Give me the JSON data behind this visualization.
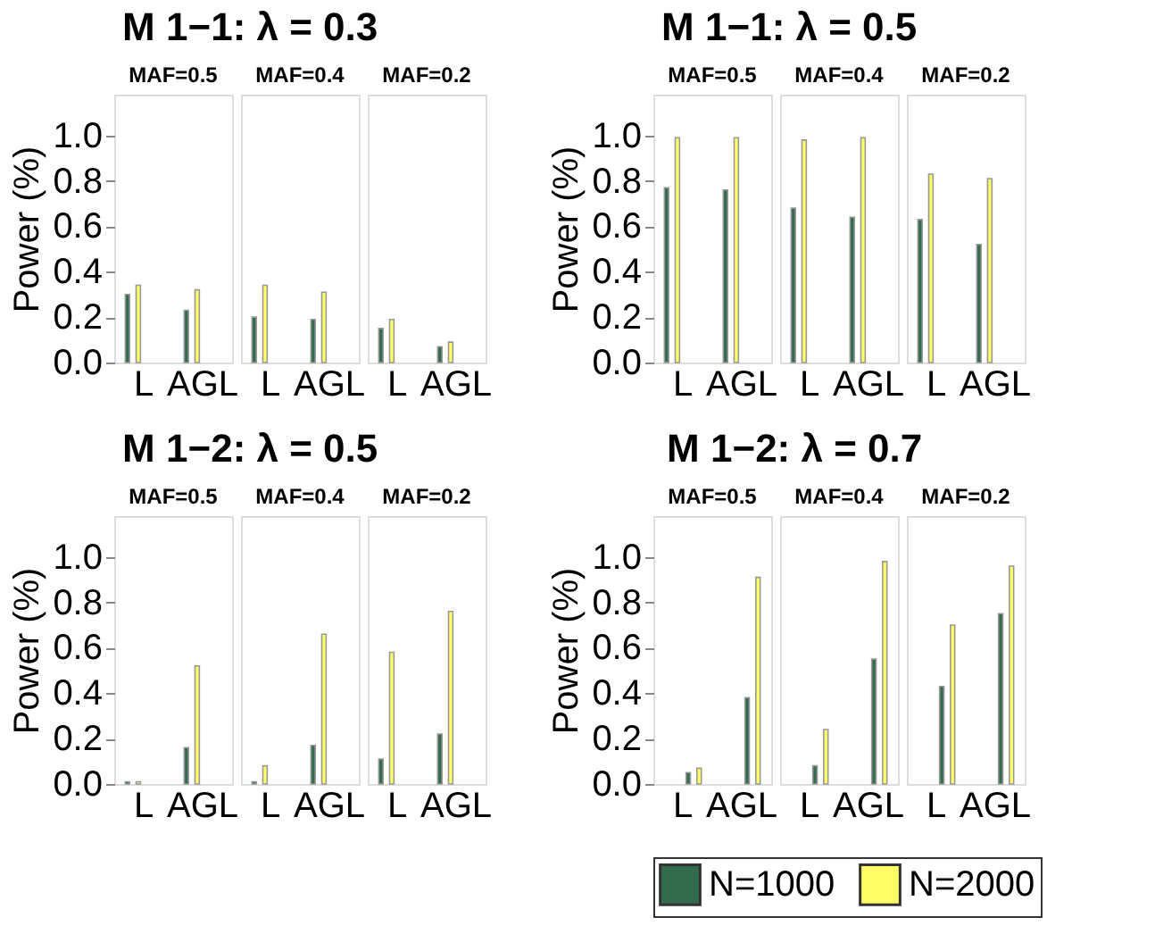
{
  "chart_data": [
    {
      "type": "bar",
      "title": "M 1−1: λ = 0.3",
      "ylabel": "Power (%)",
      "categories": [
        "L",
        "AGL",
        "L",
        "AGL",
        "L",
        "AGL"
      ],
      "annotations": [
        "MAF=0.5",
        "MAF=0.4",
        "MAF=0.2"
      ],
      "ylim": [
        0,
        1.18
      ],
      "yticks": [
        {
          "value": 0,
          "label": "0.0"
        },
        {
          "value": 0.2,
          "label": "0.2"
        },
        {
          "value": 0.4,
          "label": "0.4"
        },
        {
          "value": 0.6,
          "label": "0.6"
        },
        {
          "value": 0.8,
          "label": "0.8"
        },
        {
          "value": 1.0,
          "label": "1.0"
        }
      ],
      "grid": false,
      "legend": false,
      "series": [
        {
          "color": "#336b4f",
          "values": [
            0.3,
            0.23,
            0.2,
            0.19,
            0.15,
            0.07
          ]
        },
        {
          "color": "#ffff66",
          "values": [
            0.34,
            0.32,
            0.34,
            0.31,
            0.19,
            0.09
          ]
        }
      ]
    },
    {
      "type": "bar",
      "title": "M 1−1: λ = 0.5",
      "ylabel": "Power (%)",
      "categories": [
        "L",
        "AGL",
        "L",
        "AGL",
        "L",
        "AGL"
      ],
      "annotations": [
        "MAF=0.5",
        "MAF=0.4",
        "MAF=0.2"
      ],
      "ylim": [
        0,
        1.18
      ],
      "yticks": [
        {
          "value": 0,
          "label": "0.0"
        },
        {
          "value": 0.2,
          "label": "0.2"
        },
        {
          "value": 0.4,
          "label": "0.4"
        },
        {
          "value": 0.6,
          "label": "0.6"
        },
        {
          "value": 0.8,
          "label": "0.8"
        },
        {
          "value": 1.0,
          "label": "1.0"
        }
      ],
      "grid": false,
      "legend": false,
      "series": [
        {
          "color": "#336b4f",
          "values": [
            0.77,
            0.76,
            0.68,
            0.64,
            0.63,
            0.52
          ]
        },
        {
          "color": "#ffff66",
          "values": [
            0.99,
            0.99,
            0.98,
            0.99,
            0.83,
            0.81
          ]
        }
      ]
    },
    {
      "type": "bar",
      "title": "M 1−2: λ = 0.5",
      "ylabel": "Power (%)",
      "categories": [
        "L",
        "AGL",
        "L",
        "AGL",
        "L",
        "AGL"
      ],
      "annotations": [
        "MAF=0.5",
        "MAF=0.4",
        "MAF=0.2"
      ],
      "ylim": [
        0,
        1.18
      ],
      "yticks": [
        {
          "value": 0,
          "label": "0.0"
        },
        {
          "value": 0.2,
          "label": "0.2"
        },
        {
          "value": 0.4,
          "label": "0.4"
        },
        {
          "value": 0.6,
          "label": "0.6"
        },
        {
          "value": 0.8,
          "label": "0.8"
        },
        {
          "value": 1.0,
          "label": "1.0"
        }
      ],
      "grid": false,
      "legend": false,
      "series": [
        {
          "color": "#336b4f",
          "values": [
            0.01,
            0.16,
            0.01,
            0.17,
            0.11,
            0.22
          ]
        },
        {
          "color": "#ffff66",
          "values": [
            0.01,
            0.52,
            0.08,
            0.66,
            0.58,
            0.76
          ]
        }
      ]
    },
    {
      "type": "bar",
      "title": "M 1−2: λ = 0.7",
      "ylabel": "Power (%)",
      "categories": [
        "L",
        "AGL",
        "L",
        "AGL",
        "L",
        "AGL"
      ],
      "annotations": [
        "MAF=0.5",
        "MAF=0.4",
        "MAF=0.2"
      ],
      "ylim": [
        0,
        1.18
      ],
      "yticks": [
        {
          "value": 0,
          "label": "0.0"
        },
        {
          "value": 0.2,
          "label": "0.2"
        },
        {
          "value": 0.4,
          "label": "0.4"
        },
        {
          "value": 0.6,
          "label": "0.6"
        },
        {
          "value": 0.8,
          "label": "0.8"
        },
        {
          "value": 1.0,
          "label": "1.0"
        }
      ],
      "grid": false,
      "legend": "bottom",
      "series": [
        {
          "name": "N=1000",
          "color": "#336b4f",
          "values": [
            0.05,
            0.38,
            0.08,
            0.55,
            0.43,
            0.75
          ]
        },
        {
          "name": "N=2000",
          "color": "#ffff66",
          "values": [
            0.07,
            0.91,
            0.24,
            0.98,
            0.7,
            0.96
          ]
        }
      ]
    }
  ]
}
